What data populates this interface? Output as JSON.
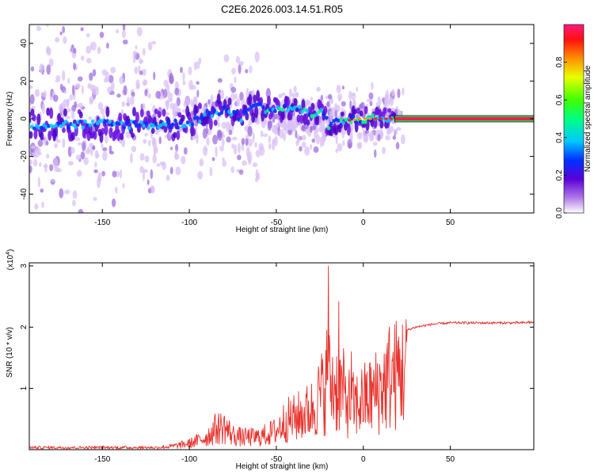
{
  "title": "C2E6.2026.003.14.51.R05",
  "chart_data": [
    {
      "type": "heatmap",
      "title": "C2E6.2026.003.14.51.R05",
      "xlabel": "Height of straight line (km)",
      "ylabel": "Frequency (Hz)",
      "xlim": [
        -192,
        98
      ],
      "ylim": [
        -50,
        50
      ],
      "xticks": [
        -150,
        -100,
        -50,
        0,
        50
      ],
      "yticks": [
        -40,
        -20,
        0,
        20,
        40
      ],
      "colorbar": {
        "label": "Normalized spectral amplitude",
        "range": [
          0,
          1
        ],
        "ticks": [
          "0.0",
          "0.2",
          "0.4",
          "0.6",
          "0.8"
        ]
      },
      "ridge": {
        "x": [
          -192,
          -170,
          -150,
          -130,
          -110,
          -100,
          -90,
          -80,
          -70,
          -65,
          -60,
          -50,
          -40,
          -30,
          -25,
          -20,
          -10,
          0,
          10,
          18,
          40,
          60,
          80,
          98
        ],
        "y": [
          -3,
          -3,
          -3,
          -3,
          -3,
          -2,
          2,
          5,
          0,
          8,
          6,
          5,
          6,
          2,
          4,
          -3,
          -1,
          0,
          0,
          0,
          0,
          0,
          0,
          0
        ],
        "narrowband_start_x": 18
      }
    },
    {
      "type": "line",
      "xlabel": "Height of straight line (km)",
      "ylabel": "SNR (10 * v/v)",
      "y_multiplier_label": "(x10",
      "y_multiplier_exp": "4",
      "y_multiplier_close": ")",
      "xlim": [
        -192,
        98
      ],
      "ylim": [
        0,
        3.05
      ],
      "xticks": [
        -150,
        -100,
        -50,
        0,
        50
      ],
      "yticks": [
        1,
        2,
        3
      ],
      "color": "#e8302a",
      "envelope": {
        "x": [
          -192,
          -150,
          -125,
          -110,
          -100,
          -90,
          -85,
          -80,
          -75,
          -70,
          -60,
          -50,
          -45,
          -40,
          -35,
          -30,
          -27,
          -25,
          -22,
          -20,
          -18,
          -15,
          -12,
          -10,
          -5,
          0,
          5,
          10,
          15,
          20,
          25,
          30,
          40,
          50,
          60,
          70,
          80,
          90,
          98
        ],
        "y": [
          0.03,
          0.03,
          0.03,
          0.08,
          0.15,
          0.3,
          0.5,
          0.55,
          0.35,
          0.3,
          0.3,
          0.45,
          0.7,
          0.75,
          0.85,
          0.95,
          1.15,
          1.3,
          1.5,
          1.7,
          1.55,
          1.5,
          1.45,
          1.2,
          1.05,
          1.2,
          1.3,
          1.5,
          1.7,
          1.85,
          1.95,
          2.0,
          2.05,
          2.07,
          2.07,
          2.07,
          2.07,
          2.07,
          2.08
        ]
      },
      "spikes": [
        {
          "x": -20,
          "y": 3.0
        },
        {
          "x": -21,
          "y": 1.95
        },
        {
          "x": -14,
          "y": 2.42
        },
        {
          "x": -7,
          "y": 1.6
        },
        {
          "x": 15,
          "y": 2.0
        },
        {
          "x": 95,
          "y": 2.1
        }
      ]
    }
  ]
}
